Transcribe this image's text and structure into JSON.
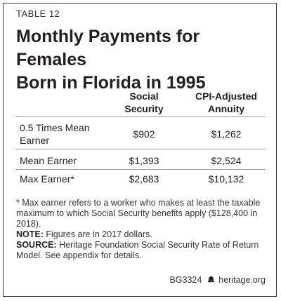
{
  "label": "TABLE 12",
  "title_line1": "Monthly Payments for Females",
  "title_line2": "Born in Florida in 1995",
  "columns": {
    "social": [
      "Social",
      "Security"
    ],
    "cpi": [
      "CPI-Adjusted",
      "Annuity"
    ]
  },
  "rows": [
    {
      "label1": "0.5 Times Mean",
      "label2": "Earner",
      "social": "$902",
      "cpi": "$1,262"
    },
    {
      "label1": "Mean Earner",
      "label2": "",
      "social": "$1,393",
      "cpi": "$2,524"
    },
    {
      "label1": "Max Earner*",
      "label2": "",
      "social": "$2,683",
      "cpi": "$10,132"
    }
  ],
  "notes": {
    "footnote": "* Max earner refers to a worker who makes at least the taxable maximum to which Social Security benefits apply ($128,400 in 2018).",
    "note_label": "NOTE:",
    "note_text": " Figures are in 2017 dollars.",
    "source_label": "SOURCE:",
    "source_text": " Heritage Foundation Social Security Rate of Return Model. See appendix for details."
  },
  "footer": {
    "code": "BG3324",
    "site": "heritage.org",
    "icon": "liberty-bell-icon"
  }
}
